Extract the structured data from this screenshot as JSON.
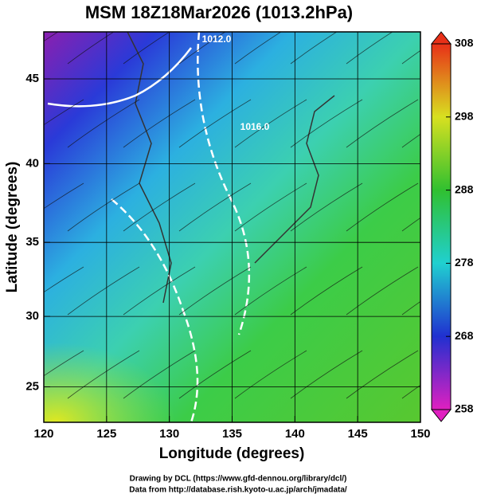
{
  "title": "MSM 18Z18Mar2026 (1013.2hPa)",
  "map": {
    "x_label": "Longitude (degrees)",
    "y_label": "Latitude (degrees)",
    "xlim": [
      120,
      150
    ],
    "xticks": [
      120,
      125,
      130,
      135,
      140,
      145,
      150
    ],
    "ylim": [
      22.4,
      47.6
    ],
    "yticks": [
      25,
      30,
      35,
      40,
      45
    ],
    "projection": "mercator",
    "grid": true,
    "contour_labels": [
      "1012.0",
      "1016.0"
    ]
  },
  "colorbar": {
    "lim": [
      258,
      308
    ],
    "ticks": [
      258,
      268,
      278,
      288,
      298,
      308
    ]
  },
  "credits": [
    "Drawing by DCL (https://www.gfd-dennou.org/library/dcl/)",
    "Data from http://database.rish.kyoto-u.ac.jp/arch/jmadata/"
  ]
}
